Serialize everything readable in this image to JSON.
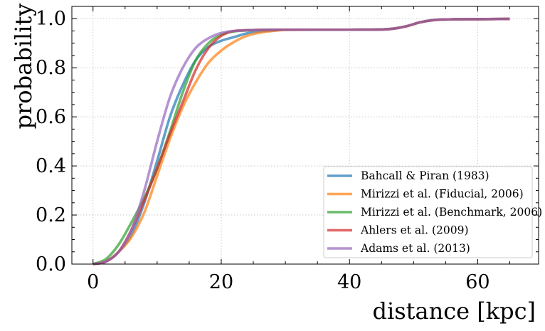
{
  "chart_data": {
    "type": "line",
    "title": "",
    "xlabel": "distance [kpc]",
    "ylabel": "probability",
    "xlim": [
      -3.3,
      69.5
    ],
    "ylim": [
      0.0,
      1.05
    ],
    "xticks": [
      0,
      20,
      40,
      60
    ],
    "xtick_labels": [
      "0",
      "20",
      "40",
      "60"
    ],
    "yticks": [
      0.0,
      0.2,
      0.4,
      0.6,
      0.8,
      1.0
    ],
    "ytick_labels": [
      "0.0",
      "0.2",
      "0.4",
      "0.6",
      "0.8",
      "1.0"
    ],
    "grid": true,
    "legend_position": "lower-right",
    "series": [
      {
        "name": "Bahcall & Piran (1983)",
        "color": "#1f77b4",
        "x": [
          0,
          2,
          4,
          6,
          8,
          10,
          12,
          14,
          16,
          18,
          20,
          22,
          24,
          26,
          28,
          30,
          35,
          40,
          45,
          47,
          49,
          51,
          53,
          55,
          60,
          65
        ],
        "y": [
          0.0,
          0.01,
          0.05,
          0.12,
          0.25,
          0.42,
          0.6,
          0.73,
          0.83,
          0.885,
          0.91,
          0.925,
          0.94,
          0.948,
          0.952,
          0.955,
          0.955,
          0.955,
          0.956,
          0.96,
          0.97,
          0.985,
          0.994,
          0.997,
          0.998,
          0.999
        ]
      },
      {
        "name": "Mirizzi et al. (Fiducial, 2006)",
        "color": "#ff7f0e",
        "x": [
          0,
          2,
          4,
          6,
          8,
          10,
          12,
          14,
          16,
          18,
          20,
          22,
          24,
          26,
          28,
          30,
          35,
          40,
          45,
          47,
          49,
          51,
          53,
          55,
          60,
          65
        ],
        "y": [
          0.0,
          0.01,
          0.05,
          0.11,
          0.21,
          0.36,
          0.51,
          0.64,
          0.74,
          0.82,
          0.87,
          0.905,
          0.93,
          0.943,
          0.95,
          0.954,
          0.955,
          0.955,
          0.956,
          0.96,
          0.97,
          0.985,
          0.994,
          0.997,
          0.998,
          0.999
        ]
      },
      {
        "name": "Mirizzi et al. (Benchmark, 2006)",
        "color": "#2ca02c",
        "x": [
          0,
          2,
          4,
          6,
          8,
          10,
          12,
          14,
          16,
          18,
          20,
          22,
          24,
          26,
          28,
          30,
          35,
          40,
          45,
          47,
          49,
          51,
          53,
          55,
          60,
          65
        ],
        "y": [
          0.0,
          0.02,
          0.08,
          0.17,
          0.27,
          0.39,
          0.54,
          0.7,
          0.83,
          0.9,
          0.935,
          0.948,
          0.952,
          0.954,
          0.955,
          0.955,
          0.955,
          0.955,
          0.956,
          0.96,
          0.97,
          0.985,
          0.994,
          0.997,
          0.998,
          0.999
        ]
      },
      {
        "name": "Ahlers et al. (2009)",
        "color": "#d62728",
        "x": [
          0,
          2,
          4,
          6,
          8,
          10,
          12,
          14,
          16,
          18,
          20,
          22,
          24,
          26,
          28,
          30,
          35,
          40,
          45,
          47,
          49,
          51,
          53,
          55,
          60,
          65
        ],
        "y": [
          0.0,
          0.01,
          0.05,
          0.14,
          0.26,
          0.39,
          0.53,
          0.66,
          0.79,
          0.88,
          0.93,
          0.95,
          0.953,
          0.954,
          0.955,
          0.955,
          0.955,
          0.955,
          0.956,
          0.96,
          0.97,
          0.985,
          0.994,
          0.997,
          0.998,
          0.999
        ]
      },
      {
        "name": "Adams et al. (2013)",
        "color": "#9467bd",
        "x": [
          0,
          2,
          4,
          6,
          8,
          10,
          12,
          14,
          16,
          18,
          20,
          22,
          24,
          26,
          28,
          30,
          35,
          40,
          45,
          47,
          49,
          51,
          53,
          55,
          60,
          65
        ],
        "y": [
          0.0,
          0.01,
          0.05,
          0.14,
          0.3,
          0.5,
          0.68,
          0.8,
          0.88,
          0.92,
          0.942,
          0.95,
          0.953,
          0.954,
          0.955,
          0.955,
          0.955,
          0.955,
          0.956,
          0.96,
          0.97,
          0.985,
          0.994,
          0.997,
          0.998,
          0.999
        ]
      }
    ]
  }
}
